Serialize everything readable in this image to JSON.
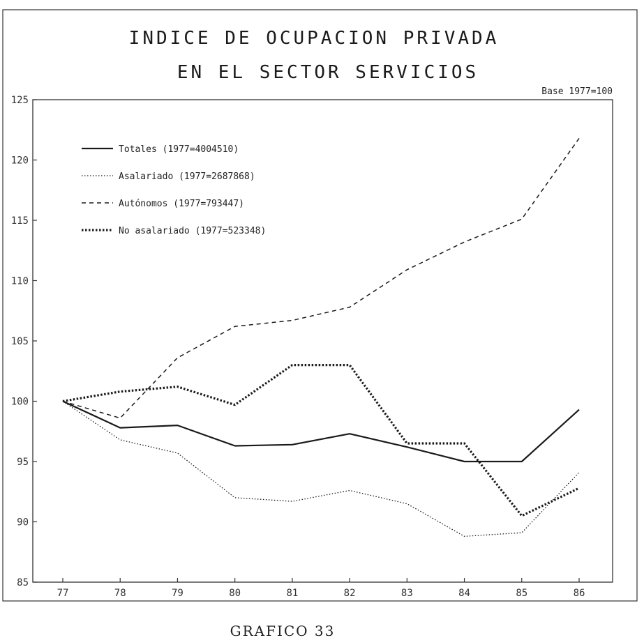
{
  "caption": "GRAFICO 33",
  "chart_data": {
    "type": "line",
    "title_line1": "INDICE DE OCUPACION PRIVADA",
    "title_line2": "EN EL SECTOR SERVICIOS",
    "base_note": "Base 1977=100",
    "x": [
      "77",
      "78",
      "79",
      "80",
      "81",
      "82",
      "83",
      "84",
      "85",
      "86"
    ],
    "ylim": [
      85,
      125
    ],
    "yticks": [
      85,
      90,
      95,
      100,
      105,
      110,
      115,
      120,
      125
    ],
    "grid": false,
    "legend_position": "top-left",
    "series": [
      {
        "name": "Totales (1977=4004510)",
        "style": "solid",
        "values": [
          100,
          97.8,
          98.0,
          96.3,
          96.4,
          97.3,
          96.2,
          95.0,
          95.0,
          99.3
        ]
      },
      {
        "name": "Asalariado (1977=2687868)",
        "style": "dotted",
        "values": [
          100,
          96.8,
          95.7,
          92.0,
          91.7,
          92.6,
          91.5,
          88.8,
          89.1,
          94.1
        ]
      },
      {
        "name": "Autónomos (1977=793447)",
        "style": "dashed",
        "values": [
          100,
          98.6,
          103.6,
          106.2,
          106.7,
          107.8,
          110.9,
          113.2,
          115.1,
          121.8
        ]
      },
      {
        "name": "No asalariado (1977=523348)",
        "style": "heavy-dotted",
        "values": [
          100,
          100.8,
          101.2,
          99.7,
          103.0,
          103.0,
          96.5,
          96.5,
          90.5,
          92.8
        ]
      }
    ]
  }
}
